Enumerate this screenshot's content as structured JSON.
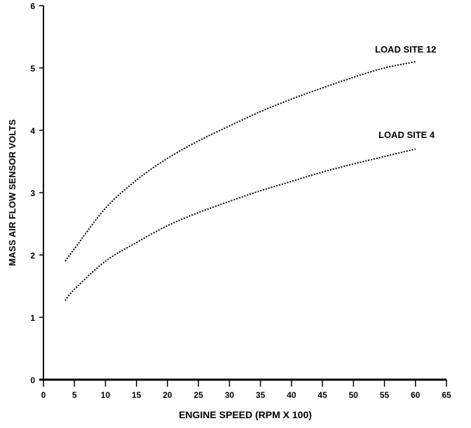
{
  "chart_data": {
    "type": "line",
    "title": "",
    "xlabel": "ENGINE SPEED (RPM X 100)",
    "ylabel": "MASS AIR FLOW SENSOR VOLTS",
    "xlim": [
      0,
      65
    ],
    "ylim": [
      0,
      6
    ],
    "xticks": [
      "0",
      "5",
      "10",
      "15",
      "20",
      "25",
      "30",
      "35",
      "40",
      "45",
      "50",
      "55",
      "60",
      "65"
    ],
    "yticks": [
      "0",
      "1",
      "2",
      "3",
      "4",
      "5",
      "6"
    ],
    "grid": false,
    "x": [
      3.5,
      5,
      10,
      15,
      20,
      25,
      30,
      35,
      40,
      45,
      50,
      55,
      60
    ],
    "series": [
      {
        "name": "LOAD SITE 12",
        "values": [
          1.9,
          2.1,
          2.75,
          3.2,
          3.55,
          3.83,
          4.07,
          4.3,
          4.5,
          4.68,
          4.85,
          5.0,
          5.1
        ]
      },
      {
        "name": "LOAD SITE 4",
        "values": [
          1.27,
          1.45,
          1.9,
          2.2,
          2.47,
          2.68,
          2.86,
          3.03,
          3.18,
          3.33,
          3.46,
          3.58,
          3.7
        ]
      }
    ],
    "colors": {
      "line": "#000000",
      "axis": "#000000"
    }
  }
}
